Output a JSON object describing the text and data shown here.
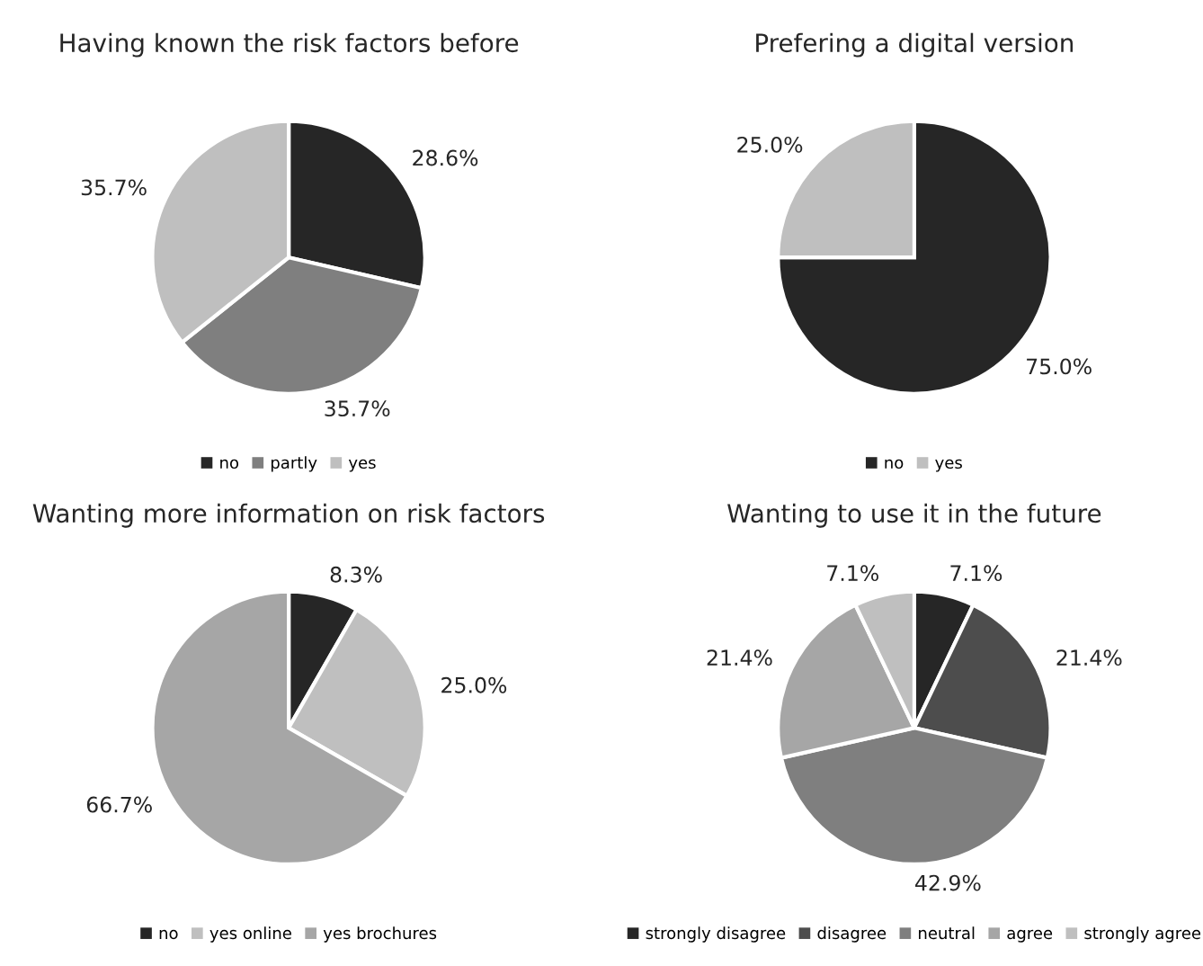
{
  "chart_data": [
    {
      "type": "pie",
      "title": "Having known the risk factors before",
      "categories": [
        "no",
        "partly",
        "yes"
      ],
      "values": [
        28.6,
        35.7,
        35.7
      ],
      "value_labels": [
        "28.6%",
        "35.7%",
        "35.7%"
      ],
      "colors": [
        "#262626",
        "#7f7f7f",
        "#bfbfbf"
      ],
      "legend": "bottom"
    },
    {
      "type": "pie",
      "title": "Prefering a digital version",
      "categories": [
        "no",
        "yes"
      ],
      "values": [
        75.0,
        25.0
      ],
      "value_labels": [
        "75.0%",
        "25.0%"
      ],
      "colors": [
        "#262626",
        "#bfbfbf"
      ],
      "legend": "bottom"
    },
    {
      "type": "pie",
      "title": "Wanting more information on risk factors",
      "categories": [
        "no",
        "yes online",
        "yes brochures"
      ],
      "values": [
        8.3,
        25.0,
        66.7
      ],
      "value_labels": [
        "8.3%",
        "25.0%",
        "66.7%"
      ],
      "colors": [
        "#262626",
        "#bfbfbf",
        "#a6a6a6"
      ],
      "legend": "bottom"
    },
    {
      "type": "pie",
      "title": "Wanting to use it in the future",
      "categories": [
        "strongly disagree",
        "disagree",
        "neutral",
        "agree",
        "strongly agree"
      ],
      "values": [
        7.1,
        21.4,
        42.9,
        21.4,
        7.1
      ],
      "value_labels": [
        "7.1%",
        "21.4%",
        "42.9%",
        "21.4%",
        "7.1%"
      ],
      "colors": [
        "#262626",
        "#4d4d4d",
        "#7f7f7f",
        "#a6a6a6",
        "#bfbfbf"
      ],
      "legend": "bottom"
    }
  ]
}
